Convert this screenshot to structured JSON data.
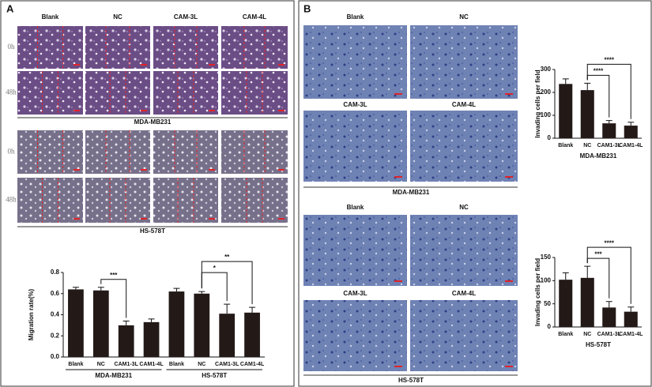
{
  "panels": {
    "a": {
      "label": "A",
      "columns": [
        "Blank",
        "NC",
        "CAM-3L",
        "CAM-4L"
      ],
      "blocks": [
        {
          "rows": [
            "0h",
            "48h"
          ],
          "cell_line": "MDA-MB231"
        },
        {
          "rows": [
            "0h",
            "48h"
          ],
          "cell_line": "HS-578T"
        }
      ]
    },
    "b": {
      "label": "B",
      "blocks": [
        {
          "labels": [
            "Blank",
            "NC",
            "CAM-3L",
            "CAM-4L"
          ],
          "cell_line": "MDA-MB231"
        },
        {
          "labels": [
            "Blank",
            "NC",
            "CAM-3L",
            "CAM-4L"
          ],
          "cell_line": "HS-578T"
        }
      ]
    }
  },
  "chart_data": [
    {
      "type": "bar",
      "ylabel": "Migration rate(%)",
      "color": "#231a18",
      "categories": [
        "Blank",
        "NC",
        "CAM1-3L",
        "CAM1-4L",
        "Blank",
        "NC",
        "CAM1-3L",
        "CAM1-4L"
      ],
      "values": [
        0.64,
        0.63,
        0.3,
        0.33,
        0.62,
        0.6,
        0.41,
        0.42
      ],
      "errors": [
        0.02,
        0.03,
        0.04,
        0.03,
        0.03,
        0.02,
        0.09,
        0.05
      ],
      "ylim": [
        0,
        0.8
      ],
      "yticks": [
        {
          "value": 0,
          "label": "0.0"
        },
        {
          "value": 0.2,
          "label": "0.2"
        },
        {
          "value": 0.4,
          "label": "0.4"
        },
        {
          "value": 0.6,
          "label": "0.6"
        },
        {
          "value": 0.8,
          "label": "0.8"
        }
      ],
      "groups": [
        {
          "label": "MDA-MB231",
          "span": [
            0,
            3
          ]
        },
        {
          "label": "HS-578T",
          "span": [
            4,
            7
          ]
        }
      ],
      "annotations": [
        {
          "text": "***",
          "between": [
            1,
            2
          ]
        },
        {
          "text": "*",
          "between": [
            5,
            6
          ]
        },
        {
          "text": "**",
          "between": [
            5,
            7
          ]
        }
      ]
    },
    {
      "type": "bar",
      "title": "MDA-MB231",
      "ylabel": "Invading cells per field",
      "color": "#231a18",
      "categories": [
        "Blank",
        "NC",
        "CAM1-3L",
        "CAM1-4L"
      ],
      "values": [
        237,
        210,
        65,
        55
      ],
      "errors": [
        22,
        30,
        12,
        15
      ],
      "ylim": [
        0,
        300
      ],
      "yticks": [
        0,
        100,
        200,
        300
      ],
      "annotations": [
        {
          "text": "****",
          "between": [
            1,
            2
          ]
        },
        {
          "text": "****",
          "between": [
            1,
            3
          ]
        }
      ]
    },
    {
      "type": "bar",
      "title": "HS-578T",
      "ylabel": "Invading cells per field",
      "color": "#231a18",
      "categories": [
        "Blank",
        "NC",
        "CAM1-3L",
        "CAM1-4L"
      ],
      "values": [
        102,
        106,
        42,
        33
      ],
      "errors": [
        15,
        25,
        13,
        10
      ],
      "ylim": [
        0,
        150
      ],
      "yticks": [
        0,
        50,
        100,
        150
      ],
      "annotations": [
        {
          "text": "***",
          "between": [
            1,
            2
          ]
        },
        {
          "text": "****",
          "between": [
            1,
            3
          ]
        }
      ]
    }
  ]
}
